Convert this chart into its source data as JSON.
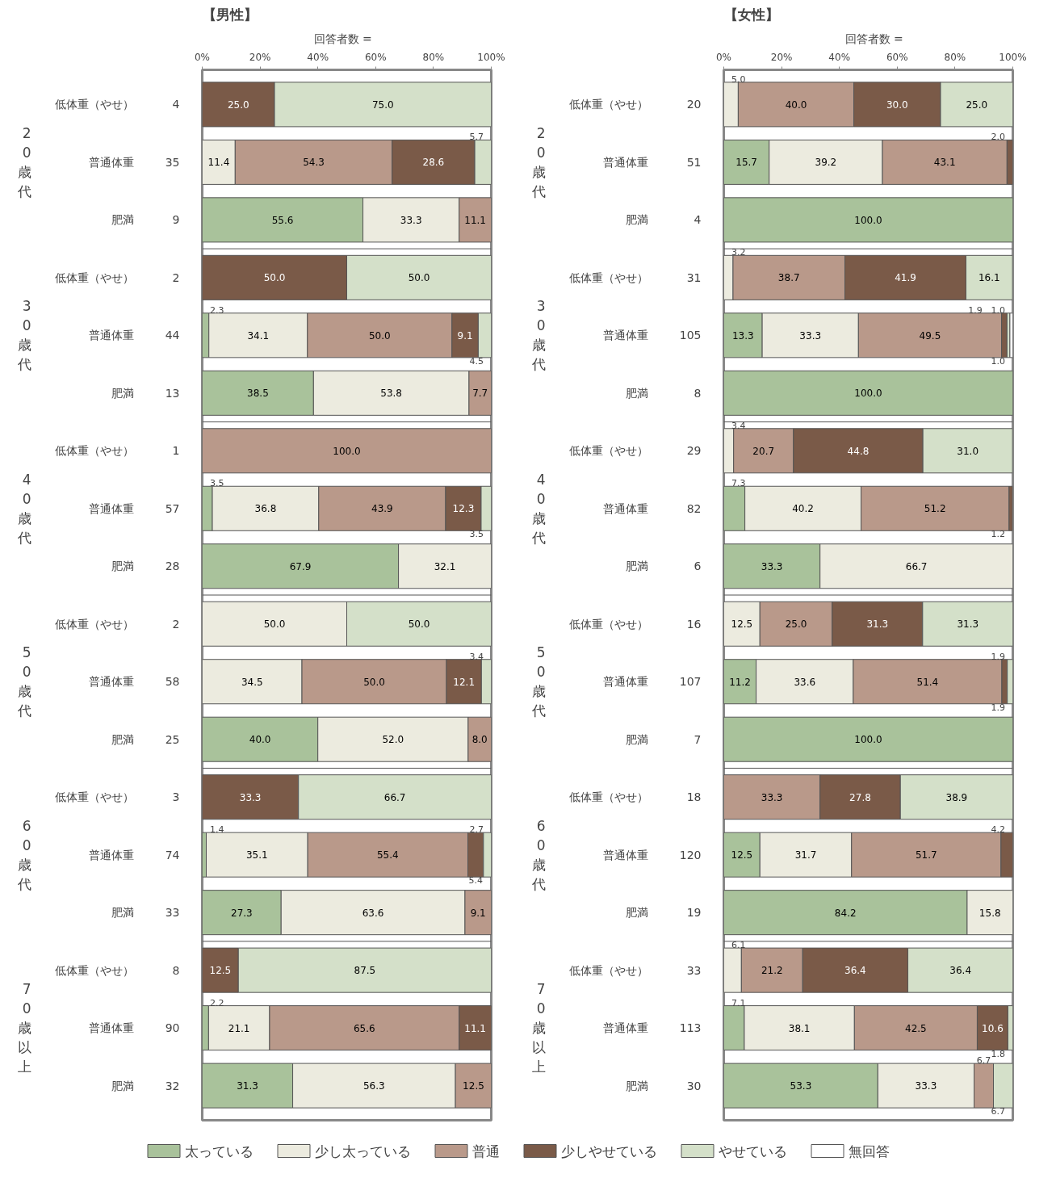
{
  "chart_data": [
    {
      "type": "bar",
      "orientation": "horizontal",
      "stacked": true,
      "title": "【男性】",
      "legend": "bottom",
      "categories": [
        "低体重（やせ）",
        "普通体重",
        "肥満",
        "低体重（やせ）",
        "普通体重",
        "肥満",
        "低体重（やせ）",
        "普通体重",
        "肥満",
        "低体重（やせ）",
        "普通体重",
        "肥満",
        "低体重（やせ）",
        "普通体重",
        "肥満",
        "低体重（やせ）",
        "普通体重",
        "肥満"
      ],
      "xlim": [
        0,
        100
      ],
      "xticks": [
        {
          "value": 0,
          "label": "0%"
        },
        {
          "value": 20,
          "label": "20%"
        },
        {
          "value": 40,
          "label": "40%"
        },
        {
          "value": 60,
          "label": "60%"
        },
        {
          "value": 80,
          "label": "80%"
        },
        {
          "value": 100,
          "label": "100%"
        }
      ],
      "annotations": [
        "回答者数 =",
        "20歳代",
        "30歳代",
        "40歳代",
        "50歳代",
        "60歳代",
        "70歳以上",
        "4",
        "35",
        "9",
        "2",
        "44",
        "13",
        "1",
        "57",
        "28",
        "2",
        "58",
        "25",
        "3",
        "74",
        "33",
        "8",
        "90",
        "32"
      ],
      "series": [
        {
          "name": "太っている",
          "color": "#a9c29b",
          "values": [
            null,
            null,
            55.6,
            null,
            2.3,
            38.5,
            null,
            3.5,
            67.9,
            null,
            null,
            40.0,
            null,
            1.4,
            27.3,
            null,
            2.2,
            31.3
          ],
          "value_labels": [
            null,
            null,
            "55.6",
            null,
            "2.3",
            "38.5",
            null,
            "3.5",
            "67.9",
            null,
            null,
            "40.0",
            null,
            "1.4",
            "27.3",
            null,
            "2.2",
            "31.3"
          ]
        },
        {
          "name": "少し太っている",
          "color": "#ecebdf",
          "values": [
            null,
            11.4,
            33.3,
            null,
            34.1,
            53.8,
            null,
            36.8,
            32.1,
            50.0,
            34.5,
            52.0,
            null,
            35.1,
            63.6,
            null,
            21.1,
            56.3
          ],
          "value_labels": [
            null,
            "11.4",
            "33.3",
            null,
            "34.1",
            "53.8",
            null,
            "36.8",
            "32.1",
            "50.0",
            "34.5",
            "52.0",
            null,
            "35.1",
            "63.6",
            null,
            "21.1",
            "56.3"
          ]
        },
        {
          "name": "普通",
          "color": "#b9998a",
          "values": [
            null,
            54.3,
            11.1,
            null,
            50.0,
            7.7,
            100.0,
            43.9,
            null,
            null,
            50.0,
            8.0,
            null,
            55.4,
            9.1,
            null,
            65.6,
            12.5
          ],
          "value_labels": [
            null,
            "54.3",
            "11.1",
            null,
            "50.0",
            "7.7",
            "100.0",
            "43.9",
            null,
            null,
            "50.0",
            "8.0",
            null,
            "55.4",
            "9.1",
            null,
            "65.6",
            "12.5"
          ]
        },
        {
          "name": "少しやせている",
          "color": "#7a5a48",
          "values": [
            25.0,
            28.6,
            null,
            50.0,
            9.1,
            null,
            null,
            12.3,
            null,
            null,
            12.1,
            null,
            33.3,
            5.4,
            null,
            12.5,
            11.1,
            null
          ],
          "value_labels": [
            "25.0",
            "28.6",
            null,
            "50.0",
            "9.1",
            null,
            null,
            "12.3",
            null,
            null,
            "12.1",
            null,
            "33.3",
            "5.4",
            null,
            "12.5",
            "11.1",
            null
          ]
        },
        {
          "name": "やせている",
          "color": "#d4e0c9",
          "values": [
            75.0,
            5.7,
            null,
            50.0,
            4.5,
            null,
            null,
            3.5,
            null,
            50.0,
            3.4,
            null,
            66.7,
            2.7,
            null,
            87.5,
            null,
            null
          ],
          "value_labels": [
            "75.0",
            "5.7",
            null,
            "50.0",
            "4.5",
            null,
            null,
            "3.5",
            null,
            "50.0",
            "3.4",
            null,
            "66.7",
            "2.7",
            null,
            "87.5",
            null,
            null
          ]
        },
        {
          "name": "無回答",
          "color": "#ffffff",
          "values": [
            null,
            null,
            null,
            null,
            null,
            null,
            null,
            null,
            null,
            null,
            null,
            null,
            null,
            null,
            null,
            null,
            null,
            null
          ]
        }
      ]
    },
    {
      "type": "bar",
      "orientation": "horizontal",
      "stacked": true,
      "title": "【女性】",
      "categories": [
        "低体重（やせ）",
        "普通体重",
        "肥満",
        "低体重（やせ）",
        "普通体重",
        "肥満",
        "低体重（やせ）",
        "普通体重",
        "肥満",
        "低体重（やせ）",
        "普通体重",
        "肥満",
        "低体重（やせ）",
        "普通体重",
        "肥満",
        "低体重（やせ）",
        "普通体重",
        "肥満"
      ],
      "xlim": [
        0,
        100
      ],
      "xticks": [
        {
          "value": 0,
          "label": "0%"
        },
        {
          "value": 20,
          "label": "20%"
        },
        {
          "value": 40,
          "label": "40%"
        },
        {
          "value": 60,
          "label": "60%"
        },
        {
          "value": 80,
          "label": "80%"
        },
        {
          "value": 100,
          "label": "100%"
        }
      ],
      "annotations": [
        "回答者数 =",
        "20歳代",
        "30歳代",
        "40歳代",
        "50歳代",
        "60歳代",
        "70歳以上",
        "20",
        "51",
        "4",
        "31",
        "105",
        "8",
        "29",
        "82",
        "6",
        "16",
        "107",
        "7",
        "18",
        "120",
        "19",
        "33",
        "113",
        "30"
      ],
      "series": [
        {
          "color": "#a9c29b",
          "values": [
            null,
            15.7,
            100.0,
            null,
            13.3,
            100.0,
            null,
            7.3,
            33.3,
            null,
            11.2,
            100.0,
            null,
            12.5,
            84.2,
            null,
            7.1,
            53.3
          ],
          "value_labels": [
            null,
            "15.7",
            "100.0",
            null,
            "13.3",
            "100.0",
            null,
            "7.3",
            "33.3",
            null,
            "11.2",
            "100.0",
            null,
            "12.5",
            "84.2",
            null,
            "7.1",
            "53.3"
          ]
        },
        {
          "color": "#ecebdf",
          "values": [
            5.0,
            39.2,
            null,
            3.2,
            33.3,
            null,
            3.4,
            40.2,
            66.7,
            12.5,
            33.6,
            null,
            null,
            31.7,
            15.8,
            6.1,
            38.1,
            33.3
          ],
          "value_labels": [
            "5.0",
            "39.2",
            null,
            "3.2",
            "33.3",
            null,
            "3.4",
            "40.2",
            "66.7",
            "12.5",
            "33.6",
            null,
            null,
            "31.7",
            "15.8",
            "6.1",
            "38.1",
            "33.3"
          ]
        },
        {
          "color": "#b9998a",
          "values": [
            40.0,
            43.1,
            null,
            38.7,
            49.5,
            null,
            20.7,
            51.2,
            null,
            25.0,
            51.4,
            null,
            33.3,
            51.7,
            null,
            21.2,
            42.5,
            6.7
          ],
          "value_labels": [
            "40.0",
            "43.1",
            null,
            "38.7",
            "49.5",
            null,
            "20.7",
            "51.2",
            null,
            "25.0",
            "51.4",
            null,
            "33.3",
            "51.7",
            null,
            "21.2",
            "42.5",
            "6.7"
          ]
        },
        {
          "color": "#7a5a48",
          "values": [
            30.0,
            2.0,
            null,
            41.9,
            1.9,
            null,
            44.8,
            1.2,
            null,
            31.3,
            1.9,
            null,
            27.8,
            4.2,
            null,
            36.4,
            10.6,
            null
          ],
          "value_labels": [
            "30.0",
            "2.0",
            null,
            "41.9",
            "1.9",
            null,
            "44.8",
            "1.2",
            null,
            "31.3",
            "1.9",
            null,
            "27.8",
            "4.2",
            null,
            "36.4",
            "10.6",
            null
          ]
        },
        {
          "color": "#d4e0c9",
          "values": [
            25.0,
            null,
            null,
            16.1,
            1.0,
            null,
            31.0,
            null,
            null,
            31.3,
            1.9,
            null,
            38.9,
            null,
            null,
            36.4,
            1.8,
            6.7
          ],
          "value_labels": [
            "25.0",
            null,
            null,
            "16.1",
            "1.0",
            null,
            "31.0",
            null,
            null,
            "31.3",
            "1.9",
            null,
            "38.9",
            null,
            null,
            "36.4",
            "1.8",
            "6.7"
          ]
        },
        {
          "color": "#ffffff",
          "values": [
            null,
            null,
            null,
            null,
            1.0,
            null,
            null,
            null,
            null,
            null,
            null,
            null,
            null,
            null,
            null,
            null,
            null,
            null
          ],
          "value_labels": [
            null,
            null,
            null,
            null,
            "1.0",
            null,
            null,
            null,
            null,
            null,
            null,
            null,
            null,
            null,
            null,
            null,
            null,
            null
          ]
        }
      ]
    }
  ]
}
